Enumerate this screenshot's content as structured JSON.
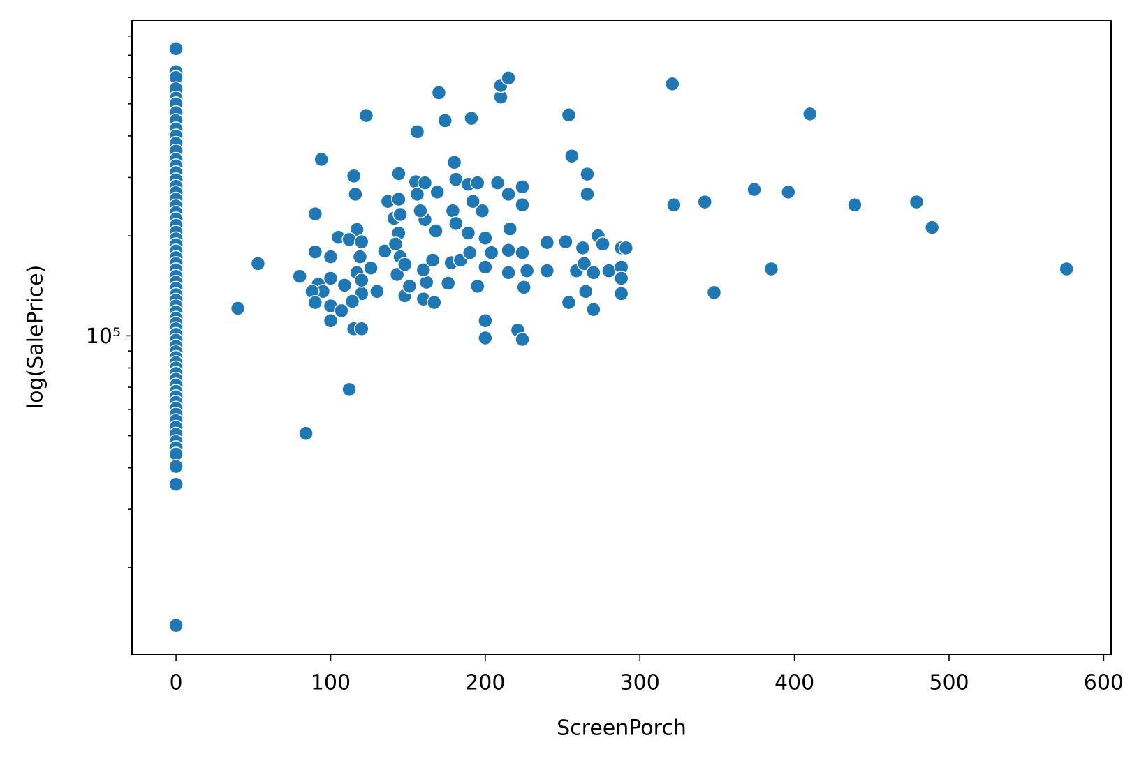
{
  "chart_data": {
    "type": "scatter",
    "xlabel": "ScreenPorch",
    "ylabel": "log(SalePrice)",
    "color": "#1f77b4",
    "edgecolor": "#ffffff",
    "yscale": "log",
    "xlim": [
      -28.5,
      604.8
    ],
    "ylim": [
      10970,
      893000
    ],
    "xticks": [
      0,
      100,
      200,
      300,
      400,
      500,
      600
    ],
    "yticks": [
      {
        "value": 100000,
        "label": "10⁵"
      }
    ],
    "yminorticks": [
      20000,
      30000,
      40000,
      50000,
      60000,
      70000,
      80000,
      90000,
      200000,
      300000,
      400000,
      500000,
      600000,
      700000,
      800000
    ],
    "x": [
      0,
      0,
      0,
      0,
      0,
      0,
      0,
      0,
      0,
      0,
      0,
      0,
      0,
      0,
      0,
      0,
      0,
      0,
      0,
      0,
      0,
      0,
      0,
      0,
      0,
      0,
      0,
      0,
      0,
      0,
      0,
      0,
      0,
      0,
      0,
      0,
      0,
      0,
      0,
      0,
      0,
      0,
      0,
      0,
      0,
      0,
      0,
      0,
      0,
      0,
      0,
      0,
      0,
      0,
      0,
      0,
      0,
      0,
      0,
      0,
      0,
      0,
      0,
      0,
      40,
      53,
      80,
      84,
      112,
      90,
      94,
      90,
      100,
      105,
      100,
      92,
      95,
      88,
      90,
      100,
      100,
      107,
      109,
      115,
      120,
      115,
      116,
      123,
      117,
      112,
      120,
      119,
      117,
      126,
      120,
      130,
      114,
      120,
      135,
      137,
      141,
      144,
      144,
      145,
      144,
      142,
      145,
      143,
      148,
      148,
      151,
      156,
      155,
      156,
      161,
      161,
      158,
      162,
      160,
      167,
      160,
      166,
      169,
      170,
      168,
      174,
      180,
      181,
      179,
      181,
      176,
      178,
      184,
      191,
      189,
      195,
      198,
      192,
      189,
      190,
      195,
      200,
      200,
      200,
      200,
      204,
      208,
      210,
      210,
      215,
      215,
      216,
      215,
      215,
      221,
      224,
      224,
      224,
      224,
      225,
      227,
      240,
      240,
      252,
      254,
      256,
      254,
      259,
      263,
      264,
      265,
      266,
      266,
      270,
      270,
      273,
      276,
      280,
      288,
      288,
      288,
      288,
      291,
      321,
      322,
      342,
      348,
      374,
      385,
      396,
      410,
      439,
      479,
      489,
      576
    ],
    "y": [
      733000,
      625000,
      600000,
      555000,
      520000,
      500000,
      470000,
      445000,
      420000,
      400000,
      380000,
      360000,
      340000,
      325000,
      310000,
      295000,
      282000,
      270000,
      258000,
      246000,
      235000,
      225000,
      215000,
      205000,
      196000,
      188000,
      180000,
      172000,
      165000,
      158000,
      151000,
      145000,
      139000,
      133000,
      128000,
      123000,
      118000,
      113000,
      109000,
      105000,
      101000,
      97000,
      93000,
      89500,
      86000,
      83000,
      80000,
      77000,
      74000,
      71000,
      68000,
      65500,
      63000,
      60500,
      58000,
      55500,
      53000,
      50500,
      48000,
      46000,
      44000,
      40400,
      35700,
      13400,
      121000,
      165000,
      151000,
      50800,
      68900,
      233000,
      340000,
      179000,
      173000,
      198000,
      149000,
      143000,
      136000,
      136000,
      126000,
      123000,
      111000,
      119000,
      142000,
      105000,
      105000,
      303000,
      267000,
      461000,
      209000,
      195000,
      192000,
      173000,
      155000,
      160000,
      134000,
      136000,
      127000,
      147000,
      180000,
      254000,
      226000,
      308000,
      258000,
      232000,
      204000,
      189000,
      173000,
      153000,
      164000,
      132000,
      141000,
      412000,
      291000,
      267000,
      289000,
      224000,
      238000,
      145000,
      129000,
      126000,
      158000,
      169000,
      271000,
      540000,
      207000,
      445000,
      333000,
      296000,
      238000,
      218000,
      144000,
      166000,
      169000,
      452000,
      286000,
      289000,
      238000,
      254000,
      204000,
      178000,
      141000,
      111000,
      98500,
      161000,
      197000,
      178000,
      289000,
      524000,
      568000,
      598000,
      267000,
      210000,
      181000,
      155000,
      104000,
      97500,
      281000,
      248000,
      178000,
      140000,
      157000,
      157000,
      191000,
      192000,
      463000,
      348000,
      126000,
      157000,
      184000,
      165000,
      136000,
      307000,
      267000,
      155000,
      120000,
      200000,
      189000,
      157000,
      184000,
      161000,
      149000,
      134000,
      184000,
      574000,
      248000,
      253000,
      135000,
      276000,
      159000,
      271000,
      466000,
      248000,
      253000,
      212000,
      159000
    ]
  }
}
